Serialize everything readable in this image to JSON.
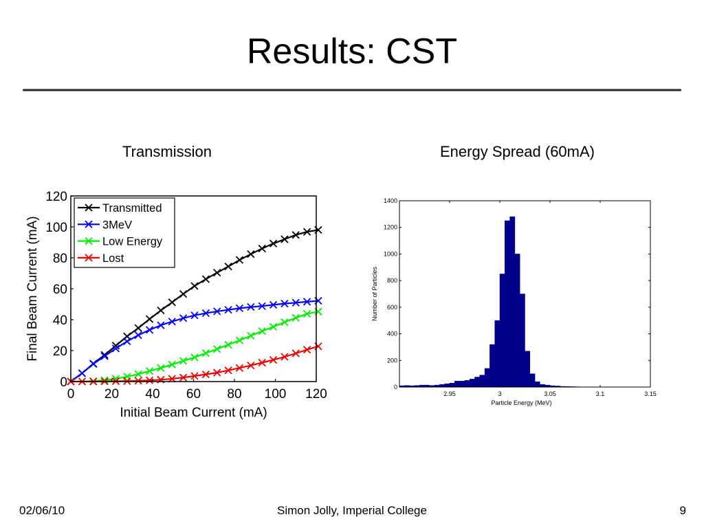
{
  "slide": {
    "title": "Results: CST",
    "left_heading": "Transmission",
    "right_heading": "Energy Spread (60mA)",
    "footer_date": "02/06/10",
    "footer_author": "Simon Jolly, Imperial College",
    "footer_page": "9"
  },
  "chart_data": [
    {
      "type": "line",
      "title": "",
      "xlabel": "Initial Beam Current (mA)",
      "ylabel": "Final Beam Current (mA)",
      "xlim": [
        0,
        120
      ],
      "ylim": [
        0,
        120
      ],
      "xticks": [
        0,
        20,
        40,
        60,
        80,
        100,
        120
      ],
      "yticks": [
        0,
        20,
        40,
        60,
        80,
        100,
        120
      ],
      "grid": false,
      "legend_position": "top-left",
      "x": [
        0,
        5.5,
        11,
        16.5,
        22,
        27.5,
        33,
        38.5,
        44,
        49.5,
        55,
        60.5,
        66,
        71.5,
        77,
        82.5,
        88,
        93.5,
        99,
        104.5,
        110,
        115.5,
        121
      ],
      "series": [
        {
          "name": "Transmitted",
          "color": "#000000",
          "values": [
            0,
            5.4,
            11.6,
            17.2,
            23.2,
            29.2,
            34.6,
            40.4,
            46.0,
            51.2,
            56.6,
            61.8,
            66.2,
            70.4,
            74.4,
            78.6,
            82.4,
            86.0,
            89.2,
            92.0,
            94.8,
            96.8,
            98.0
          ]
        },
        {
          "name": "3MeV",
          "color": "#0000ff",
          "values": [
            0,
            5.4,
            11.4,
            16.4,
            21.4,
            26.0,
            30.0,
            33.4,
            36.4,
            38.8,
            41.0,
            42.8,
            44.2,
            45.4,
            46.4,
            47.4,
            48.2,
            48.8,
            49.6,
            50.4,
            51.0,
            51.6,
            52.2
          ]
        },
        {
          "name": "Low Energy",
          "color": "#00ee00",
          "values": [
            0,
            0.1,
            0.3,
            0.9,
            1.8,
            3.2,
            4.8,
            6.8,
            8.8,
            11.0,
            13.4,
            15.6,
            18.4,
            21.0,
            23.8,
            26.6,
            29.6,
            32.6,
            35.4,
            38.4,
            41.2,
            43.8,
            45.2
          ]
        },
        {
          "name": "Lost",
          "color": "#ee0000",
          "values": [
            0,
            0.0,
            0.0,
            0.1,
            0.2,
            0.3,
            0.5,
            0.8,
            1.2,
            1.8,
            2.6,
            3.6,
            4.6,
            5.8,
            7.2,
            8.8,
            10.4,
            12.2,
            14.0,
            16.0,
            18.2,
            20.6,
            22.8
          ]
        }
      ]
    },
    {
      "type": "bar",
      "title": "",
      "xlabel": "Particle Energy (MeV)",
      "ylabel": "Number of Particles",
      "xlim": [
        2.9,
        3.15
      ],
      "ylim": [
        0,
        1400
      ],
      "xticks": [
        2.95,
        3,
        3.05,
        3.1,
        3.15
      ],
      "yticks": [
        0,
        200,
        400,
        600,
        800,
        1000,
        1200,
        1400
      ],
      "grid": false,
      "color": "#00008b",
      "bin_width": 0.005,
      "bin_starts": [
        2.9,
        2.905,
        2.91,
        2.915,
        2.92,
        2.925,
        2.93,
        2.935,
        2.94,
        2.945,
        2.95,
        2.955,
        2.96,
        2.965,
        2.97,
        2.975,
        2.98,
        2.985,
        2.99,
        2.995,
        3.0,
        3.005,
        3.01,
        3.015,
        3.02,
        3.025,
        3.03,
        3.035,
        3.04,
        3.045,
        3.05,
        3.055,
        3.06,
        3.065,
        3.07,
        3.075,
        3.08,
        3.085
      ],
      "values": [
        10,
        12,
        10,
        12,
        15,
        15,
        12,
        15,
        20,
        25,
        30,
        45,
        45,
        50,
        60,
        75,
        90,
        140,
        320,
        500,
        850,
        1250,
        1280,
        1000,
        700,
        270,
        100,
        40,
        20,
        15,
        10,
        8,
        5,
        4,
        3,
        2,
        1,
        1
      ]
    }
  ]
}
